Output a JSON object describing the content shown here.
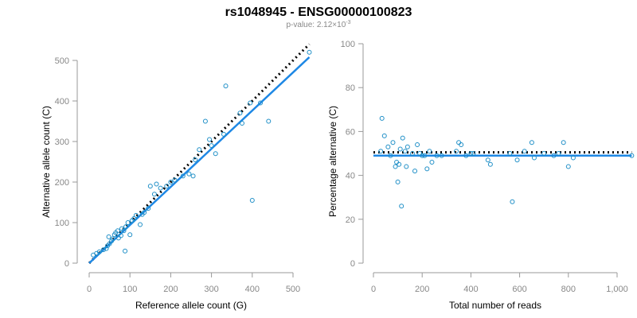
{
  "page": {
    "title": "rs1048945 - ENSG00000100823",
    "pvalue_prefix": "p-value: 2.12×10",
    "pvalue_exponent": "-3"
  },
  "colors": {
    "points": "#1f8fc7",
    "fit_line": "#1e88e5",
    "reference_line": "#000000"
  },
  "chart_data": [
    {
      "type": "scatter",
      "xlabel": "Reference allele count (G)",
      "ylabel": "Alternative allele count (C)",
      "xlim": [
        0,
        540
      ],
      "ylim": [
        0,
        520
      ],
      "xticks": [
        0,
        100,
        200,
        300,
        400,
        500
      ],
      "yticks": [
        0,
        100,
        200,
        300,
        400,
        500
      ],
      "xtick_labels": [
        "0",
        "100",
        "200",
        "300",
        "400",
        "500"
      ],
      "ytick_labels": [
        "0",
        "100",
        "200",
        "300",
        "400",
        "500"
      ],
      "points": [
        [
          10,
          20
        ],
        [
          18,
          24
        ],
        [
          25,
          28
        ],
        [
          35,
          33
        ],
        [
          42,
          36
        ],
        [
          45,
          43
        ],
        [
          50,
          48
        ],
        [
          55,
          55
        ],
        [
          58,
          60
        ],
        [
          48,
          65
        ],
        [
          62,
          70
        ],
        [
          65,
          75
        ],
        [
          70,
          80
        ],
        [
          72,
          62
        ],
        [
          78,
          68
        ],
        [
          80,
          85
        ],
        [
          85,
          80
        ],
        [
          90,
          90
        ],
        [
          88,
          30
        ],
        [
          95,
          100
        ],
        [
          100,
          70
        ],
        [
          105,
          105
        ],
        [
          110,
          110
        ],
        [
          115,
          118
        ],
        [
          125,
          95
        ],
        [
          130,
          120
        ],
        [
          135,
          125
        ],
        [
          145,
          135
        ],
        [
          150,
          190
        ],
        [
          160,
          170
        ],
        [
          165,
          195
        ],
        [
          175,
          185
        ],
        [
          190,
          190
        ],
        [
          200,
          200
        ],
        [
          210,
          205
        ],
        [
          230,
          215
        ],
        [
          245,
          220
        ],
        [
          255,
          215
        ],
        [
          260,
          255
        ],
        [
          270,
          280
        ],
        [
          285,
          350
        ],
        [
          295,
          305
        ],
        [
          300,
          290
        ],
        [
          310,
          270
        ],
        [
          330,
          318
        ],
        [
          335,
          437
        ],
        [
          370,
          370
        ],
        [
          375,
          345
        ],
        [
          395,
          395
        ],
        [
          400,
          155
        ],
        [
          420,
          395
        ],
        [
          440,
          350
        ],
        [
          540,
          520
        ]
      ],
      "fit_line": [
        [
          0,
          0
        ],
        [
          540,
          508
        ]
      ],
      "reference_line": [
        [
          0,
          0
        ],
        [
          540,
          540
        ]
      ]
    },
    {
      "type": "scatter",
      "xlabel": "Total number of reads",
      "ylabel": "Percentage alternative (C)",
      "xlim": [
        0,
        1070
      ],
      "ylim": [
        0,
        100
      ],
      "xticks": [
        0,
        200,
        400,
        600,
        800,
        1000
      ],
      "yticks": [
        0,
        20,
        40,
        60,
        80,
        100
      ],
      "xtick_labels": [
        "0",
        "200",
        "400",
        "600",
        "800",
        "1,000"
      ],
      "ytick_labels": [
        "0",
        "20",
        "40",
        "60",
        "80",
        "100"
      ],
      "points": [
        [
          30,
          51
        ],
        [
          35,
          66
        ],
        [
          45,
          58
        ],
        [
          60,
          53
        ],
        [
          70,
          49
        ],
        [
          80,
          55
        ],
        [
          90,
          44
        ],
        [
          95,
          46
        ],
        [
          100,
          37
        ],
        [
          105,
          45
        ],
        [
          110,
          52
        ],
        [
          115,
          26
        ],
        [
          120,
          57
        ],
        [
          130,
          51
        ],
        [
          135,
          44
        ],
        [
          140,
          53
        ],
        [
          160,
          50
        ],
        [
          170,
          42
        ],
        [
          180,
          54
        ],
        [
          190,
          50
        ],
        [
          200,
          49
        ],
        [
          210,
          49
        ],
        [
          220,
          43
        ],
        [
          230,
          51
        ],
        [
          240,
          46
        ],
        [
          260,
          49
        ],
        [
          280,
          49
        ],
        [
          340,
          51
        ],
        [
          350,
          55
        ],
        [
          360,
          54
        ],
        [
          380,
          49
        ],
        [
          400,
          50
        ],
        [
          410,
          50
        ],
        [
          470,
          47
        ],
        [
          480,
          45
        ],
        [
          560,
          50
        ],
        [
          570,
          28
        ],
        [
          590,
          47
        ],
        [
          620,
          51
        ],
        [
          650,
          55
        ],
        [
          660,
          48
        ],
        [
          700,
          50
        ],
        [
          740,
          49
        ],
        [
          760,
          50
        ],
        [
          780,
          55
        ],
        [
          800,
          44
        ],
        [
          820,
          48
        ],
        [
          1060,
          49
        ]
      ],
      "fit_line": [
        [
          0,
          49
        ],
        [
          1060,
          49
        ]
      ],
      "reference_line": [
        [
          0,
          50.5
        ],
        [
          1060,
          50.5
        ]
      ]
    }
  ]
}
